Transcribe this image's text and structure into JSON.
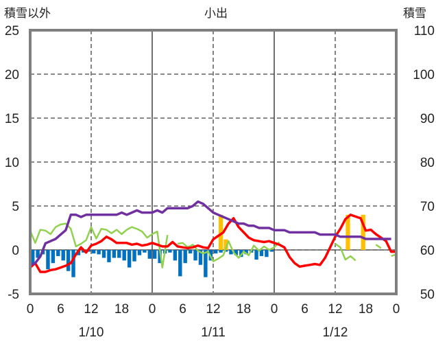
{
  "chart_data": {
    "type": "line",
    "title": "小出",
    "left_axis_label": "積雪以外",
    "right_axis_label": "積雪",
    "left_axis": {
      "min": -5,
      "max": 25,
      "ticks": [
        -5,
        0,
        5,
        10,
        15,
        20,
        25
      ]
    },
    "right_axis": {
      "min": 50,
      "max": 110,
      "ticks": [
        50,
        60,
        70,
        80,
        90,
        100,
        110
      ]
    },
    "x_hours": {
      "min": 0,
      "max": 72
    },
    "x_tick_hours": [
      0,
      6,
      12,
      18,
      24,
      30,
      36,
      42,
      48,
      54,
      60,
      66,
      72
    ],
    "x_tick_labels": [
      "0",
      "6",
      "12",
      "18",
      "0",
      "6",
      "12",
      "18",
      "0",
      "6",
      "12",
      "18",
      "0"
    ],
    "date_labels": [
      {
        "hour": 12,
        "text": "1/10"
      },
      {
        "hour": 36,
        "text": "1/11"
      },
      {
        "hour": 60,
        "text": "1/12"
      }
    ],
    "grid": {
      "major_hours": [
        24,
        48
      ],
      "dashed_hours": [
        12,
        36,
        60
      ]
    },
    "series": [
      {
        "axis": "right",
        "color": "#7030a0",
        "points": [
          [
            0,
            56.5
          ],
          [
            1,
            57
          ],
          [
            2,
            58.5
          ],
          [
            3,
            61.5
          ],
          [
            4,
            62
          ],
          [
            5,
            62.5
          ],
          [
            6,
            63.5
          ],
          [
            7,
            64.5
          ],
          [
            8,
            68
          ],
          [
            9,
            68
          ],
          [
            10,
            67.5
          ],
          [
            11,
            68
          ],
          [
            12,
            68
          ],
          [
            13,
            68
          ],
          [
            14,
            68
          ],
          [
            15,
            68
          ],
          [
            16,
            68
          ],
          [
            17,
            68
          ],
          [
            18,
            68.5
          ],
          [
            19,
            68
          ],
          [
            20,
            68.5
          ],
          [
            21,
            69
          ],
          [
            22,
            68.5
          ],
          [
            23,
            68.5
          ],
          [
            24,
            68.5
          ],
          [
            25,
            69
          ],
          [
            26,
            68.5
          ],
          [
            27,
            69.5
          ],
          [
            28,
            69.5
          ],
          [
            29,
            69.5
          ],
          [
            30,
            69.5
          ],
          [
            31,
            69.5
          ],
          [
            32,
            70
          ],
          [
            33,
            71
          ],
          [
            34,
            70.5
          ],
          [
            35,
            69.5
          ],
          [
            36,
            68.5
          ],
          [
            37,
            68
          ],
          [
            38,
            67.5
          ],
          [
            39,
            67
          ],
          [
            40,
            66.5
          ],
          [
            41,
            66
          ],
          [
            42,
            66
          ],
          [
            43,
            65.5
          ],
          [
            44,
            65.5
          ],
          [
            45,
            65
          ],
          [
            46,
            65
          ],
          [
            47,
            65
          ],
          [
            48,
            64.5
          ],
          [
            49,
            64.5
          ],
          [
            50,
            64.5
          ],
          [
            51,
            64
          ],
          [
            52,
            64
          ],
          [
            53,
            64
          ],
          [
            54,
            64
          ],
          [
            55,
            64
          ],
          [
            56,
            64
          ],
          [
            57,
            63.5
          ],
          [
            58,
            63.5
          ],
          [
            59,
            63.5
          ],
          [
            60,
            63.5
          ],
          [
            61,
            63
          ],
          [
            62,
            63
          ],
          [
            63,
            63
          ],
          [
            64,
            63
          ],
          [
            65,
            63
          ],
          [
            66,
            62.5
          ],
          [
            67,
            62.5
          ],
          [
            68,
            62.5
          ],
          [
            69,
            62.5
          ],
          [
            70,
            62.5
          ],
          [
            71,
            62.5
          ]
        ]
      },
      {
        "axis": "left",
        "color": "#ff0000",
        "points": [
          [
            0,
            -2
          ],
          [
            1,
            -1.5
          ],
          [
            2,
            -2.5
          ],
          [
            3,
            -2.5
          ],
          [
            4,
            -2.3
          ],
          [
            5,
            -2.2
          ],
          [
            6,
            -2
          ],
          [
            7,
            -1.8
          ],
          [
            8,
            -1.5
          ],
          [
            9,
            -0.5
          ],
          [
            10,
            0.3
          ],
          [
            11,
            -0.3
          ],
          [
            12,
            0.5
          ],
          [
            13,
            0.7
          ],
          [
            14,
            1
          ],
          [
            15,
            1.5
          ],
          [
            16,
            1.2
          ],
          [
            17,
            0.8
          ],
          [
            18,
            0.8
          ],
          [
            19,
            0.8
          ],
          [
            20,
            0.6
          ],
          [
            21,
            0.7
          ],
          [
            22,
            0.5
          ],
          [
            23,
            0.6
          ],
          [
            24,
            0.8
          ],
          [
            25,
            0.6
          ],
          [
            26,
            0.4
          ],
          [
            27,
            0.4
          ],
          [
            28,
            0.9
          ],
          [
            29,
            0.4
          ],
          [
            30,
            0.3
          ],
          [
            31,
            0.2
          ],
          [
            32,
            0.3
          ],
          [
            33,
            0.5
          ],
          [
            34,
            0.3
          ],
          [
            35,
            0.2
          ],
          [
            36,
            1.2
          ],
          [
            37,
            1.6
          ],
          [
            38,
            2
          ],
          [
            39,
            3
          ],
          [
            40,
            3.6
          ],
          [
            41,
            2.6
          ],
          [
            42,
            2
          ],
          [
            43,
            1.4
          ],
          [
            44,
            1.1
          ],
          [
            45,
            1
          ],
          [
            46,
            0.9
          ],
          [
            47,
            1
          ],
          [
            48,
            0.8
          ],
          [
            49,
            0.6
          ],
          [
            50,
            0.3
          ],
          [
            51,
            -0.8
          ],
          [
            52,
            -1.5
          ],
          [
            53,
            -1.9
          ],
          [
            54,
            -1.8
          ],
          [
            55,
            -1.7
          ],
          [
            56,
            -1.6
          ],
          [
            57,
            -1.7
          ],
          [
            58,
            -0.9
          ],
          [
            59,
            0.3
          ],
          [
            60,
            1.5
          ],
          [
            61,
            2.4
          ],
          [
            62,
            3.5
          ],
          [
            63,
            4
          ],
          [
            64,
            3.8
          ],
          [
            65,
            3.6
          ],
          [
            66,
            2.2
          ],
          [
            67,
            2.3
          ],
          [
            68,
            1.8
          ],
          [
            69,
            1.4
          ],
          [
            70,
            1
          ],
          [
            71,
            -0.2
          ],
          [
            72,
            -0.2
          ]
        ]
      },
      {
        "axis": "left",
        "color": "#92d050",
        "points": [
          [
            0,
            2.2
          ],
          [
            1,
            0.8
          ],
          [
            2,
            2.3
          ],
          [
            3,
            2.2
          ],
          [
            4,
            1.8
          ],
          [
            5,
            2.6
          ],
          [
            6,
            2.9
          ],
          [
            7,
            3
          ],
          [
            8,
            2.4
          ],
          [
            9,
            0.4
          ],
          [
            10,
            0.7
          ],
          [
            11,
            1.1
          ],
          [
            12,
            2.6
          ],
          [
            13,
            1.3
          ],
          [
            14,
            2.4
          ],
          [
            15,
            2.3
          ],
          [
            16,
            1.9
          ],
          [
            17,
            2.3
          ],
          [
            18,
            1.8
          ],
          [
            19,
            2.3
          ],
          [
            20,
            2.6
          ],
          [
            21,
            2.4
          ],
          [
            22,
            2.1
          ],
          [
            23,
            1.4
          ],
          [
            24,
            1.8
          ],
          [
            25,
            2.1
          ],
          [
            26,
            -2
          ],
          [
            27,
            1.7
          ],
          [
            null,
            null
          ],
          [
            29,
            0.7
          ],
          [
            30,
            0.8
          ],
          [
            31,
            0.3
          ],
          [
            32,
            0.6
          ],
          [
            33,
            -0.1
          ],
          [
            34,
            -0.4
          ],
          [
            35,
            -0.2
          ],
          [
            36,
            -1.3
          ],
          [
            37,
            -1
          ],
          [
            38,
            -0.6
          ],
          [
            39,
            1
          ],
          [
            40,
            -0.3
          ],
          [
            41,
            -0.9
          ],
          [
            42,
            -0.2
          ],
          [
            43,
            -0.6
          ],
          [
            44,
            0.5
          ],
          [
            45,
            -0.1
          ],
          [
            46,
            0.4
          ],
          [
            47,
            0
          ],
          [
            48,
            0.3
          ],
          [
            49,
            0.9
          ],
          [
            null,
            null
          ],
          [
            60,
            0.7
          ],
          [
            61,
            0.3
          ],
          [
            62,
            -1.1
          ],
          [
            63,
            -0.7
          ],
          [
            64,
            -1.2
          ],
          [
            null,
            null
          ],
          [
            68,
            0.6
          ],
          [
            69,
            0.2
          ],
          [
            null,
            null
          ],
          [
            71,
            -0.7
          ],
          [
            72,
            -0.5
          ]
        ]
      }
    ],
    "bars_blue": [
      [
        0,
        -1.7
      ],
      [
        1,
        -0.9
      ],
      [
        2,
        -0.5
      ],
      [
        3,
        -2.2
      ],
      [
        4,
        -1.5
      ],
      [
        5,
        -0.7
      ],
      [
        6,
        -1.2
      ],
      [
        7,
        -2.4
      ],
      [
        8,
        -3.1
      ],
      [
        9,
        -0.6
      ],
      [
        10,
        -0.3
      ],
      [
        11,
        -0.2
      ],
      [
        12,
        -0.4
      ],
      [
        13,
        -0.5
      ],
      [
        14,
        -0.9
      ],
      [
        15,
        -1.4
      ],
      [
        16,
        -0.9
      ],
      [
        17,
        -0.9
      ],
      [
        18,
        -1.2
      ],
      [
        19,
        -2
      ],
      [
        20,
        -1.3
      ],
      [
        21,
        -0.6
      ],
      [
        22,
        -0.3
      ],
      [
        23,
        -1
      ],
      [
        24,
        -1
      ],
      [
        25,
        -1.5
      ],
      [
        26,
        -0.4
      ],
      [
        27,
        -0.3
      ],
      [
        28,
        -1.2
      ],
      [
        29,
        -3
      ],
      [
        30,
        -1.5
      ],
      [
        31,
        -0.4
      ],
      [
        32,
        -1.2
      ],
      [
        33,
        -1.7
      ],
      [
        34,
        -3.1
      ],
      [
        35,
        -1.2
      ],
      [
        36,
        -0.4
      ],
      [
        37,
        -0.3
      ],
      [
        38,
        -0.2
      ],
      [
        39,
        -0.5
      ],
      [
        40,
        -0.6
      ],
      [
        41,
        -0.8
      ],
      [
        42,
        -0.5
      ],
      [
        43,
        -0.3
      ],
      [
        44,
        -1.1
      ],
      [
        45,
        -0.7
      ],
      [
        46,
        -0.8
      ],
      [
        47,
        -0.2
      ]
    ],
    "bars_orange": [
      [
        37,
        4
      ],
      [
        38,
        1.2
      ],
      [
        62,
        4
      ],
      [
        65,
        4
      ]
    ]
  }
}
